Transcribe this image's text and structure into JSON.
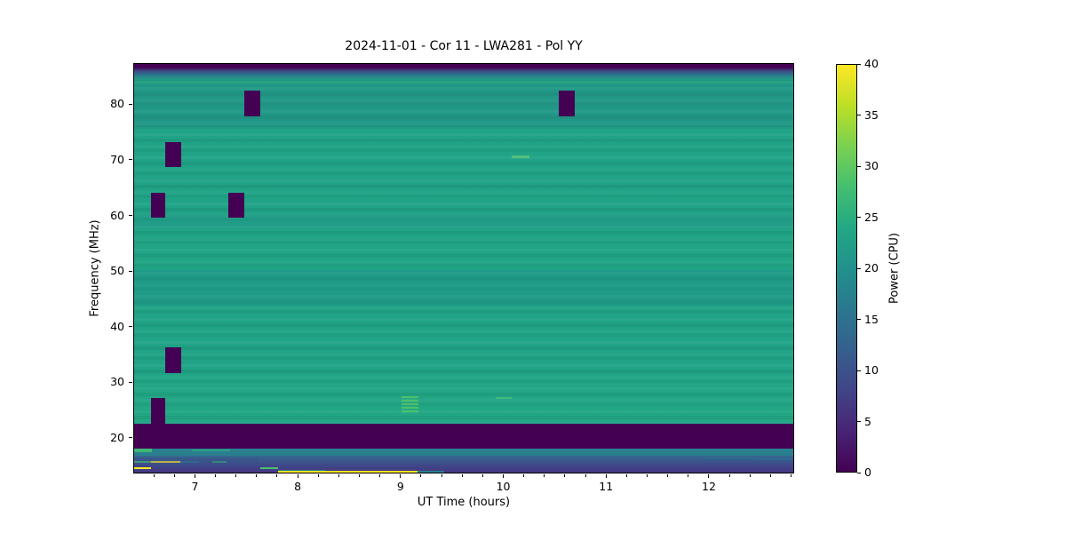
{
  "figure": {
    "title": "2024-11-01 - Cor 11 - LWA281 - Pol YY"
  },
  "chart_data": {
    "type": "heatmap",
    "title": "2024-11-01 - Cor 11 - LWA281 - Pol YY",
    "xlabel": "UT Time (hours)",
    "ylabel": "Frequency (MHz)",
    "xlim": [
      6.4,
      12.83
    ],
    "ylim": [
      13.6,
      87.4
    ],
    "x_ticks": [
      7,
      8,
      9,
      10,
      11,
      12
    ],
    "x_minor_step": 0.2,
    "y_ticks": [
      20,
      30,
      40,
      50,
      60,
      70,
      80
    ],
    "grid": false,
    "colormap": "viridis",
    "background_power_approx": 22,
    "base_color": "#20a386",
    "colorbar": {
      "label": "Power (CPU)",
      "lim": [
        0,
        40
      ],
      "ticks": [
        0,
        5,
        10,
        15,
        20,
        25,
        30,
        35,
        40
      ],
      "stops": [
        [
          0.0,
          "#440154"
        ],
        [
          0.1,
          "#482475"
        ],
        [
          0.2,
          "#414487"
        ],
        [
          0.3,
          "#355f8d"
        ],
        [
          0.4,
          "#2a788e"
        ],
        [
          0.5,
          "#21918c"
        ],
        [
          0.6,
          "#22a884"
        ],
        [
          0.7,
          "#44bf70"
        ],
        [
          0.8,
          "#7ad151"
        ],
        [
          0.9,
          "#bddf26"
        ],
        [
          1.0,
          "#fde725"
        ]
      ]
    },
    "top_edge_band": {
      "f": [
        84.6,
        87.4
      ],
      "gradient": [
        "#440154",
        "#3e4c87",
        "#2b758d",
        "#21a085"
      ]
    },
    "shade_bands": [
      {
        "f": [
          76.0,
          84.6
        ],
        "color": "rgba(40,110,142,0.20)"
      },
      {
        "f": [
          44.0,
          50.3
        ],
        "color": "rgba(31,138,140,0.30)"
      },
      {
        "f": [
          57.8,
          60.3
        ],
        "color": "rgba(31,138,140,0.22)"
      },
      {
        "f": [
          23.0,
          31.5
        ],
        "color": "rgba(52,190,120,0.12)"
      },
      {
        "f": [
          50.3,
          57.8
        ],
        "color": "rgba(40,175,128,0.10)"
      }
    ],
    "dropout_blobs": {
      "value": 0,
      "color": "#440154",
      "blocks": [
        {
          "t": [
            7.47,
            7.63
          ],
          "f": [
            78.0,
            82.6
          ]
        },
        {
          "t": [
            10.53,
            10.69
          ],
          "f": [
            78.0,
            82.6
          ]
        },
        {
          "t": [
            6.7,
            6.86
          ],
          "f": [
            68.9,
            73.3
          ]
        },
        {
          "t": [
            6.56,
            6.7
          ],
          "f": [
            59.8,
            64.2
          ]
        },
        {
          "t": [
            7.32,
            7.47
          ],
          "f": [
            59.8,
            64.2
          ]
        },
        {
          "t": [
            6.7,
            6.86
          ],
          "f": [
            31.8,
            36.4
          ]
        },
        {
          "t": [
            6.56,
            6.7
          ],
          "f": [
            22.7,
            27.3
          ]
        }
      ]
    },
    "rfi_band": {
      "t": [
        6.4,
        12.83
      ],
      "f": [
        18.23,
        22.7
      ],
      "color": "#440154",
      "value": 0
    },
    "emission_patches": [
      {
        "t": [
          9.0,
          9.17
        ],
        "f": [
          24.4,
          27.7
        ],
        "color": "#53c568",
        "striped": true,
        "opacity": 0.85
      },
      {
        "t": [
          10.07,
          10.25
        ],
        "f": [
          70.5,
          70.9
        ],
        "color": "#7fd470",
        "striped": false,
        "opacity": 0.55
      },
      {
        "t": [
          9.92,
          10.07
        ],
        "f": [
          27.2,
          27.5
        ],
        "color": "#64cc74",
        "striped": false,
        "opacity": 0.5
      },
      {
        "t": [
          6.4,
          12.83
        ],
        "f": [
          83.9,
          84.4
        ],
        "color": "#2eb47c",
        "striped": false,
        "opacity": 0.45
      }
    ],
    "bottom_strip": {
      "teal_band": {
        "t": [
          6.4,
          12.83
        ],
        "f": [
          17.0,
          18.23
        ],
        "color": "#2a7f8e"
      },
      "teal_band_segments": [
        {
          "t": [
            6.4,
            6.57
          ],
          "f": [
            17.6,
            18.23
          ],
          "color": "#3fbc73",
          "opacity": 0.95
        },
        {
          "t": [
            6.96,
            7.33
          ],
          "f": [
            17.7,
            18.15
          ],
          "color": "#2fa386",
          "opacity": 0.9
        }
      ],
      "lower_gradient": {
        "t": [
          6.4,
          12.83
        ],
        "f": [
          13.6,
          17.0
        ],
        "colors": [
          "#34688e",
          "#3e4989",
          "#46307e"
        ]
      },
      "streaks": [
        {
          "t": [
            6.4,
            6.56
          ],
          "f": [
            15.6,
            16.0
          ],
          "color": "#44bf70",
          "opacity": 1.0
        },
        {
          "t": [
            6.56,
            6.85
          ],
          "f": [
            15.6,
            16.0
          ],
          "color": "#fde725",
          "opacity": 1.0
        },
        {
          "t": [
            6.85,
            7.03
          ],
          "f": [
            15.6,
            16.0
          ],
          "color": "#2a788e",
          "opacity": 1.0
        },
        {
          "t": [
            7.16,
            7.3
          ],
          "f": [
            15.65,
            15.95
          ],
          "color": "#35b779",
          "opacity": 0.8
        },
        {
          "t": [
            6.4,
            6.56
          ],
          "f": [
            14.56,
            14.88
          ],
          "color": "#fde725",
          "opacity": 1.0
        },
        {
          "t": [
            7.63,
            7.8
          ],
          "f": [
            14.56,
            14.88
          ],
          "color": "#49c16d",
          "opacity": 1.0
        },
        {
          "t": [
            7.8,
            8.26
          ],
          "f": [
            14.16,
            14.4
          ],
          "color": "#277f8e",
          "opacity": 1.0
        },
        {
          "t": [
            7.8,
            9.16
          ],
          "f": [
            13.84,
            14.16
          ],
          "color": "#fbe122",
          "opacity": 1.0
        },
        {
          "t": [
            9.16,
            9.42
          ],
          "f": [
            13.84,
            14.16
          ],
          "color": "#27808e",
          "opacity": 1.0
        },
        {
          "t": [
            6.4,
            7.6
          ],
          "f": [
            15.0,
            16.6
          ],
          "color": "#3b4e8a",
          "opacity": 0.35
        },
        {
          "t": [
            11.95,
            12.45
          ],
          "f": [
            16.3,
            16.6
          ],
          "color": "#2d6e8e",
          "opacity": 0.7
        },
        {
          "t": [
            12.45,
            12.82
          ],
          "f": [
            16.1,
            16.4
          ],
          "color": "#2d6e8e",
          "opacity": 0.7
        }
      ]
    }
  }
}
